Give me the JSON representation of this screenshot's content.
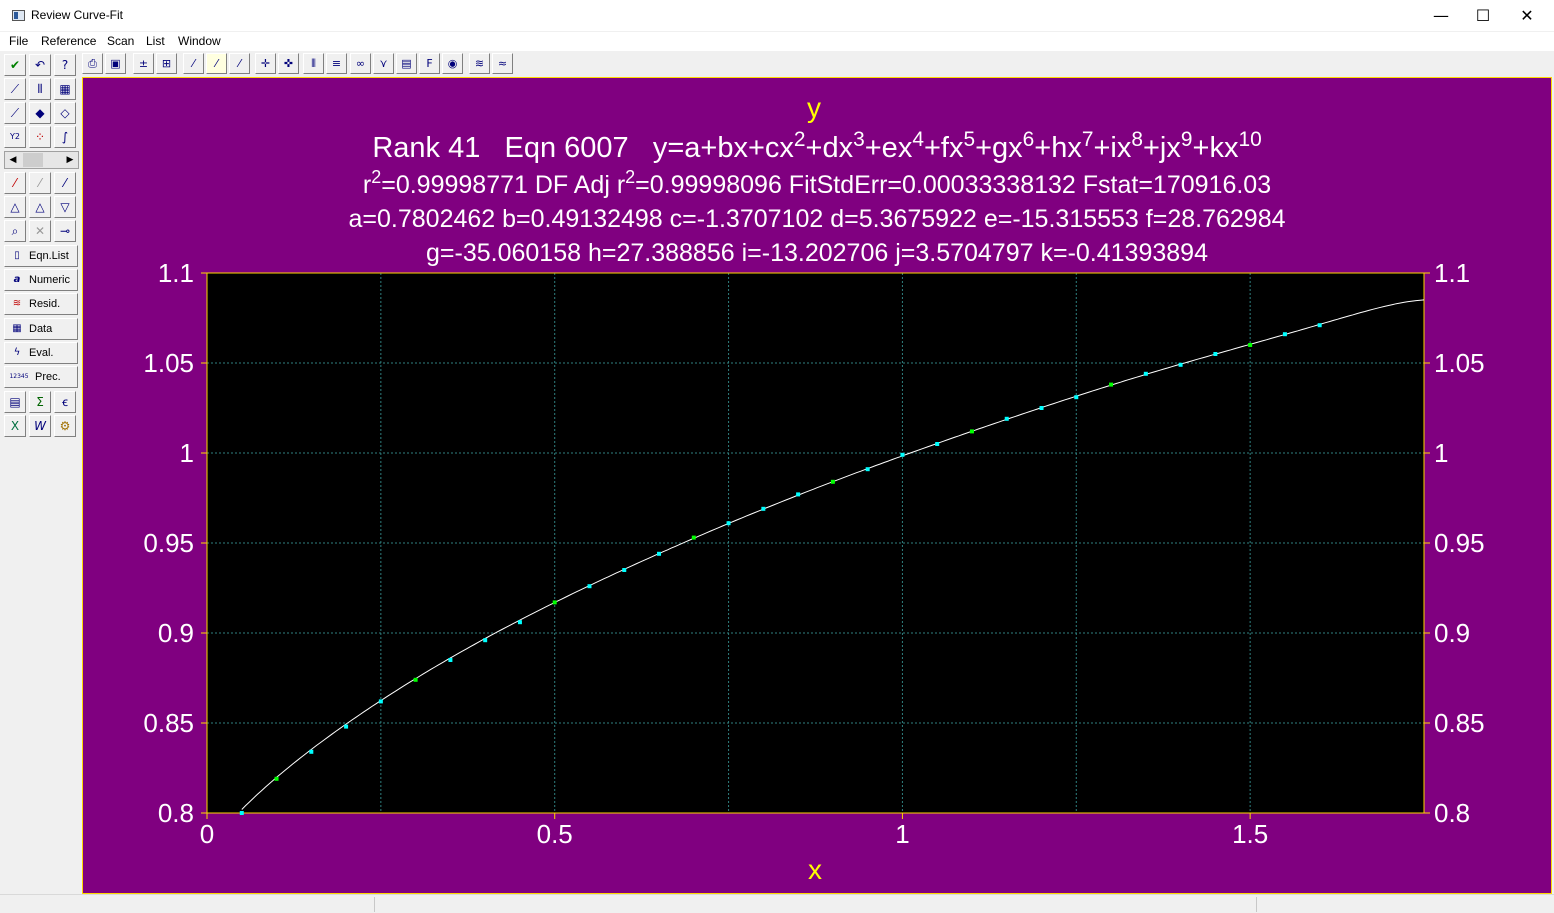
{
  "window": {
    "title": "Review Curve-Fit",
    "controls": {
      "minimize": "—",
      "maximize": "☐",
      "close": "✕"
    }
  },
  "menu": [
    "File",
    "Reference",
    "Scan",
    "List",
    "Window"
  ],
  "toolbar": {
    "icons": [
      "printer-icon",
      "clipboard-icon",
      "error-bars-icon",
      "error-bars-alt-icon",
      "fit-line-icon",
      "fit-line-selected-icon",
      "fit-line-alt-icon",
      "crosshair-icon",
      "crosshair-alt-icon",
      "bars-icon",
      "list-icon",
      "binoculars-icon",
      "tree-icon",
      "format-icon",
      "f-icon",
      "color-wheel-icon",
      "multi-curve-icon",
      "multi-curve-alt-icon"
    ]
  },
  "sidebar": {
    "labels": {
      "eqn_list": "Eqn.List",
      "numeric": "Numeric",
      "resid": "Resid.",
      "data": "Data",
      "eval": "Eval.",
      "prec": "Prec."
    },
    "glyphs": {
      "numeric": "a",
      "prec": "12345"
    }
  },
  "plot": {
    "axis_name_y": "y",
    "axis_name_x": "x",
    "heading": {
      "rank_label": "Rank 41",
      "eqn_label": "Eqn 6007",
      "equation_text": "y=a+bx+cx2+dx3+ex4+fx5+gx6+hx7+ix8+jx9+kx10"
    },
    "stats_line": "r2=0.99998771  DF Adj r2=0.99998096  FitStdErr=0.00033338132  Fstat=170916.03",
    "coeffs_line_1": "a=0.7802462 b=0.49132498 c=-1.3707102 d=5.3675922 e=-15.315553 f=28.762984",
    "coeffs_line_2": "g=-35.060158 h=27.388856 i=-13.202706 j=3.5704797 k=-0.41393894"
  },
  "colors": {
    "frame": "#800080",
    "plot_area": "#000000",
    "fit_curve": "#ffffff",
    "points": "#00ffff",
    "points_alt": "#00ff00",
    "axis_names": "#ffff00",
    "axis_lines": "#ffd700",
    "grid": "#2f7f7f"
  },
  "chart_data": {
    "type": "scatter",
    "xlabel": "x",
    "ylabel": "y",
    "xlim": [
      0,
      1.75
    ],
    "ylim": [
      0.8,
      1.1
    ],
    "x_ticks": [
      0,
      0.5,
      1,
      1.5
    ],
    "x_tick_labels": [
      "0",
      "0.5",
      "1",
      "1.5"
    ],
    "y_ticks": [
      0.8,
      0.85,
      0.9,
      0.95,
      1,
      1.05,
      1.1
    ],
    "y_tick_labels": [
      "0.8",
      "0.85",
      "0.9",
      "0.95",
      "1",
      "1.05",
      "1.1"
    ],
    "grid": true,
    "coefficients": [
      0.7802462,
      0.49132498,
      -1.3707102,
      5.3675922,
      -15.315553,
      28.762984,
      -35.060158,
      27.388856,
      -13.202706,
      3.5704797,
      -0.41393894
    ],
    "points": {
      "x": [
        0.05,
        0.1,
        0.15,
        0.2,
        0.25,
        0.3,
        0.35,
        0.4,
        0.45,
        0.5,
        0.55,
        0.6,
        0.65,
        0.7,
        0.75,
        0.8,
        0.85,
        0.9,
        0.95,
        1.0,
        1.05,
        1.1,
        1.15,
        1.2,
        1.25,
        1.3,
        1.35,
        1.4,
        1.45,
        1.5,
        1.55,
        1.6
      ],
      "y": [
        0.8,
        0.819,
        0.834,
        0.848,
        0.862,
        0.874,
        0.885,
        0.896,
        0.906,
        0.917,
        0.926,
        0.935,
        0.944,
        0.953,
        0.961,
        0.969,
        0.977,
        0.984,
        0.991,
        0.999,
        1.005,
        1.012,
        1.019,
        1.025,
        1.031,
        1.038,
        1.044,
        1.049,
        1.055,
        1.06,
        1.066,
        1.071
      ]
    }
  }
}
